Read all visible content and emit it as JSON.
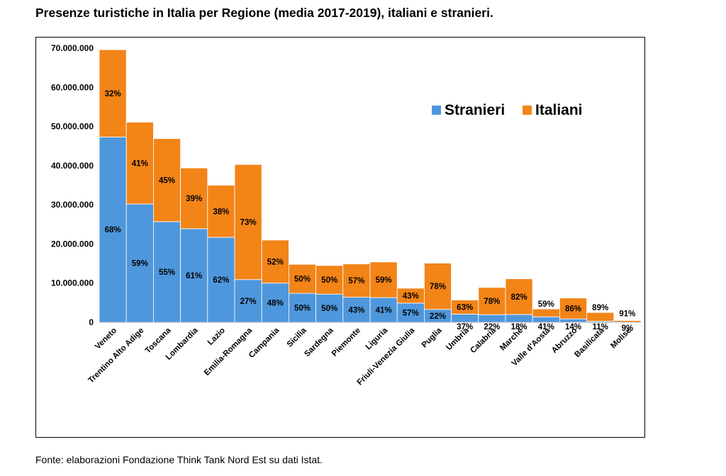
{
  "title": "Presenze turistiche in Italia per Regione (media 2017-2019), italiani e stranieri.",
  "source": "Fonte: elaborazioni Fondazione Think Tank Nord Est su dati Istat.",
  "colors": {
    "Stranieri": "#4f97dc",
    "Italiani": "#f28418"
  },
  "chart_data": {
    "type": "bar",
    "stacked": true,
    "title": "",
    "xlabel": "",
    "ylabel": "",
    "ylim": [
      0,
      70000000
    ],
    "yticks": [
      0,
      10000000,
      20000000,
      30000000,
      40000000,
      50000000,
      60000000,
      70000000
    ],
    "ytick_labels": [
      "0",
      "10.000.000",
      "20.000.000",
      "30.000.000",
      "40.000.000",
      "50.000.000",
      "60.000.000",
      "70.000.000"
    ],
    "grid": false,
    "legend_position": "top-right",
    "categories": [
      "Veneto",
      "Trentino Alto Adige",
      "Toscana",
      "Lombardia",
      "Lazio",
      "Emilia-Romagna",
      "Campania",
      "Sicilia",
      "Sardegna",
      "Piemonte",
      "Liguria",
      "Friuli-Venezia Giulia",
      "Puglia",
      "Umbria",
      "Calabria",
      "Marche",
      "Valle d'Aosta",
      "Abruzzo",
      "Basilicata",
      "Molise"
    ],
    "series": [
      {
        "name": "Stranieri",
        "values": [
          47300000,
          30200000,
          25700000,
          23900000,
          21700000,
          10900000,
          10000000,
          7400000,
          7200000,
          6400000,
          6300000,
          4900000,
          3300000,
          2100000,
          1950000,
          2000000,
          1400000,
          870000,
          270000,
          40000
        ],
        "labels": [
          "68%",
          "59%",
          "55%",
          "61%",
          "62%",
          "27%",
          "48%",
          "50%",
          "50%",
          "43%",
          "41%",
          "57%",
          "22%",
          "37%",
          "22%",
          "18%",
          "41%",
          "14%",
          "11%",
          "9%"
        ]
      },
      {
        "name": "Italiani",
        "values": [
          22300000,
          20900000,
          21200000,
          15500000,
          13300000,
          29400000,
          11000000,
          7400000,
          7300000,
          8500000,
          9100000,
          3800000,
          11800000,
          3600000,
          6950000,
          9100000,
          2000000,
          5330000,
          2230000,
          410000
        ],
        "labels": [
          "32%",
          "41%",
          "45%",
          "39%",
          "38%",
          "73%",
          "52%",
          "50%",
          "50%",
          "57%",
          "59%",
          "43%",
          "78%",
          "63%",
          "78%",
          "82%",
          "59%",
          "86%",
          "89%",
          "91%"
        ]
      }
    ]
  }
}
